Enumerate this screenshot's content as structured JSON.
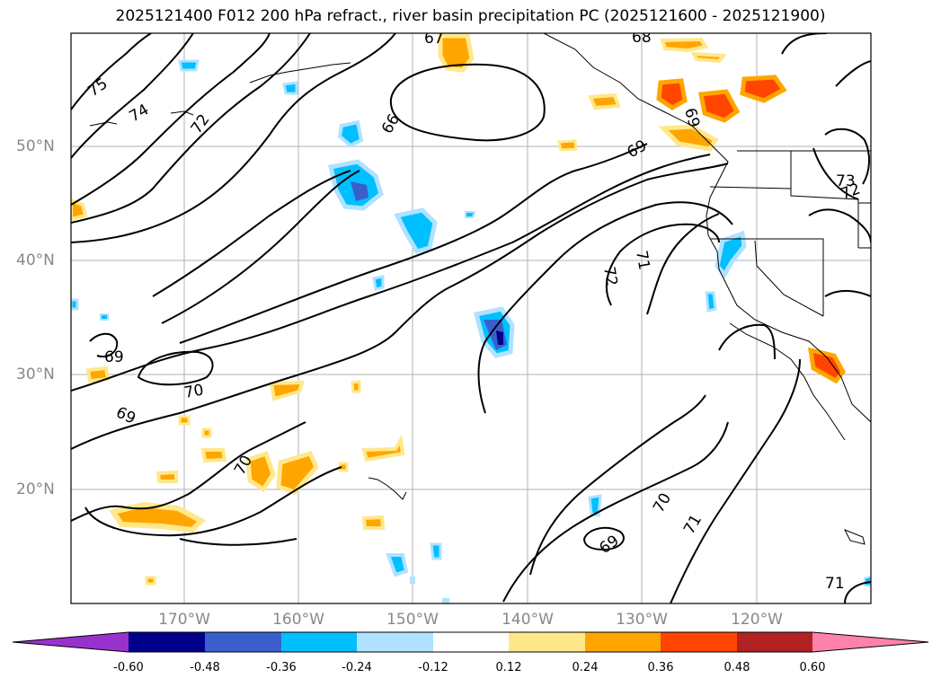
{
  "title": "2025121400 F012 200 hPa refract., river basin precipitation PC (2025121600 - 2025121900)",
  "map": {
    "lat_ticks": [
      "50°N",
      "40°N",
      "30°N",
      "20°N"
    ],
    "lon_ticks": [
      "170°W",
      "160°W",
      "150°W",
      "140°W",
      "130°W",
      "120°W"
    ],
    "contour_labels": [
      "75",
      "74",
      "72",
      "66",
      "69",
      "68",
      "67",
      "69",
      "73",
      "72",
      "71",
      "72",
      "69",
      "70",
      "69",
      "70",
      "70",
      "71",
      "69",
      "71"
    ]
  },
  "colorbar": {
    "ticks": [
      "-0.60",
      "-0.48",
      "-0.36",
      "-0.24",
      "-0.12",
      "0.12",
      "0.24",
      "0.36",
      "0.48",
      "0.60"
    ],
    "colors": [
      "#9932cc",
      "#00008b",
      "#3a5fcd",
      "#00bfff",
      "#b0e2ff",
      "#ffffff",
      "#ffe88a",
      "#ffa500",
      "#ff4500",
      "#b22222",
      "#ff82ab"
    ]
  }
}
